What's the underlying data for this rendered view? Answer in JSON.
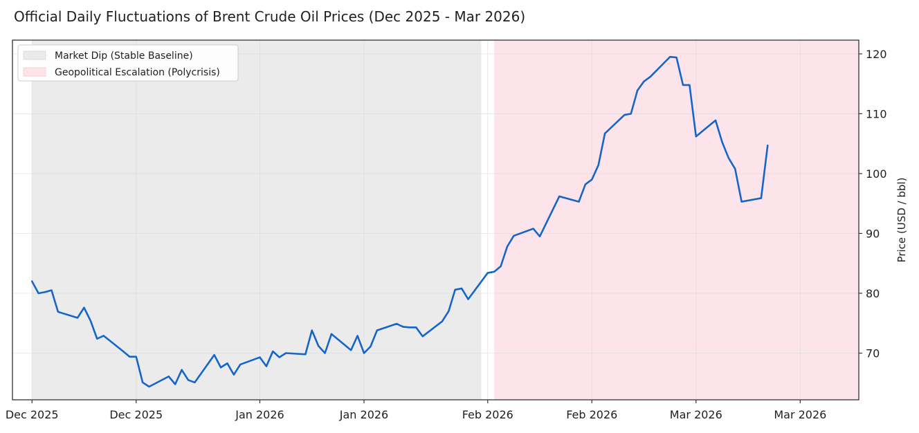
{
  "chart_data": {
    "type": "line",
    "title": "Official Daily Fluctuations of Brent Crude Oil Prices (Dec 2025 - Mar 2026)",
    "xlabel": "",
    "ylabel": "Price (USD / bbl)",
    "ylim": [
      62.2,
      122.3
    ],
    "yticks": [
      70,
      80,
      90,
      100,
      110,
      120
    ],
    "xlim": [
      -3,
      127
    ],
    "xticks": [
      {
        "x": 0,
        "label": "Dec 2025"
      },
      {
        "x": 16,
        "label": "Dec 2025"
      },
      {
        "x": 35,
        "label": "Jan 2026"
      },
      {
        "x": 51,
        "label": "Jan 2026"
      },
      {
        "x": 70,
        "label": "Feb 2026"
      },
      {
        "x": 86,
        "label": "Feb 2026"
      },
      {
        "x": 102,
        "label": "Mar 2026"
      },
      {
        "x": 118,
        "label": "Mar 2026"
      }
    ],
    "grid": true,
    "legend_position": "top-left",
    "regions": [
      {
        "name": "Market Dip (Stable Baseline)",
        "x_start": 0,
        "x_end": 69,
        "color": "#ebebeb"
      },
      {
        "name": "Geopolitical Escalation (Polycrisis)",
        "x_start": 71,
        "x_end": 128,
        "color": "#fde4ea"
      }
    ],
    "series": [
      {
        "name": "",
        "color": "#1565c8",
        "points": [
          [
            0,
            82.0
          ],
          [
            1,
            80.0
          ],
          [
            2,
            80.2
          ],
          [
            3,
            80.5
          ],
          [
            4,
            76.9
          ],
          [
            7,
            75.9
          ],
          [
            8,
            77.6
          ],
          [
            9,
            75.4
          ],
          [
            10,
            72.4
          ],
          [
            11,
            72.9
          ],
          [
            14,
            70.3
          ],
          [
            15,
            69.4
          ],
          [
            16,
            69.4
          ],
          [
            17,
            65.1
          ],
          [
            18,
            64.4
          ],
          [
            21,
            66.1
          ],
          [
            22,
            64.8
          ],
          [
            23,
            67.2
          ],
          [
            24,
            65.5
          ],
          [
            25,
            65.1
          ],
          [
            28,
            69.7
          ],
          [
            29,
            67.6
          ],
          [
            30,
            68.3
          ],
          [
            31,
            66.4
          ],
          [
            32,
            68.1
          ],
          [
            35,
            69.3
          ],
          [
            36,
            67.8
          ],
          [
            37,
            70.3
          ],
          [
            38,
            69.3
          ],
          [
            39,
            70.0
          ],
          [
            42,
            69.8
          ],
          [
            43,
            73.8
          ],
          [
            44,
            71.2
          ],
          [
            45,
            70.0
          ],
          [
            46,
            73.2
          ],
          [
            49,
            70.5
          ],
          [
            50,
            72.9
          ],
          [
            51,
            70.0
          ],
          [
            52,
            71.1
          ],
          [
            53,
            73.8
          ],
          [
            56,
            74.9
          ],
          [
            57,
            74.4
          ],
          [
            58,
            74.3
          ],
          [
            59,
            74.3
          ],
          [
            60,
            72.8
          ],
          [
            63,
            75.3
          ],
          [
            64,
            77.0
          ],
          [
            65,
            80.6
          ],
          [
            66,
            80.8
          ],
          [
            67,
            79.0
          ],
          [
            70,
            83.4
          ],
          [
            71,
            83.6
          ],
          [
            72,
            84.5
          ],
          [
            73,
            87.8
          ],
          [
            74,
            89.6
          ],
          [
            77,
            90.8
          ],
          [
            78,
            89.5
          ],
          [
            81,
            96.2
          ],
          [
            84,
            95.3
          ],
          [
            85,
            98.2
          ],
          [
            86,
            99.0
          ],
          [
            87,
            101.4
          ],
          [
            88,
            106.7
          ],
          [
            91,
            109.8
          ],
          [
            92,
            110.0
          ],
          [
            93,
            113.9
          ],
          [
            94,
            115.4
          ],
          [
            95,
            116.2
          ],
          [
            98,
            119.5
          ],
          [
            99,
            119.4
          ],
          [
            100,
            114.8
          ],
          [
            101,
            114.8
          ],
          [
            102,
            106.2
          ],
          [
            105,
            108.9
          ],
          [
            106,
            105.3
          ],
          [
            107,
            102.6
          ],
          [
            108,
            100.8
          ],
          [
            109,
            95.3
          ],
          [
            112,
            95.9
          ],
          [
            113,
            104.7
          ]
        ]
      }
    ]
  }
}
